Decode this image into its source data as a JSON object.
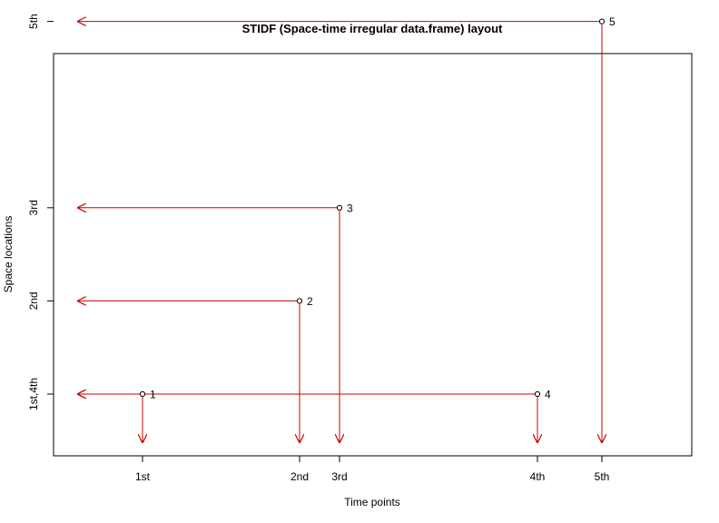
{
  "chart_data": {
    "type": "scatter",
    "title": "STIDF (Space-time irregular data.frame) layout",
    "xlabel": "Time points",
    "ylabel": "Space locations",
    "x_ticks": [
      {
        "value": 1,
        "label": "1st"
      },
      {
        "value": 2,
        "label": "2nd"
      },
      {
        "value": 3,
        "label": "3rd"
      },
      {
        "value": 4,
        "label": "4th"
      },
      {
        "value": 5,
        "label": "5th"
      }
    ],
    "y_ticks": [
      {
        "value": 1,
        "label": "1st,4th"
      },
      {
        "value": 2,
        "label": "2nd"
      },
      {
        "value": 3,
        "label": "3rd"
      },
      {
        "value": 5,
        "label": "5th"
      }
    ],
    "points": [
      {
        "label": "1",
        "x": 1,
        "y": 1
      },
      {
        "label": "2",
        "x": 2,
        "y": 2
      },
      {
        "label": "3",
        "x": 3,
        "y": 3
      },
      {
        "label": "4",
        "x": 4,
        "y": 1
      },
      {
        "label": "5",
        "x": 5,
        "y": 5
      }
    ],
    "arrow_color": "#cc0000",
    "grid": false,
    "legend": "none"
  }
}
